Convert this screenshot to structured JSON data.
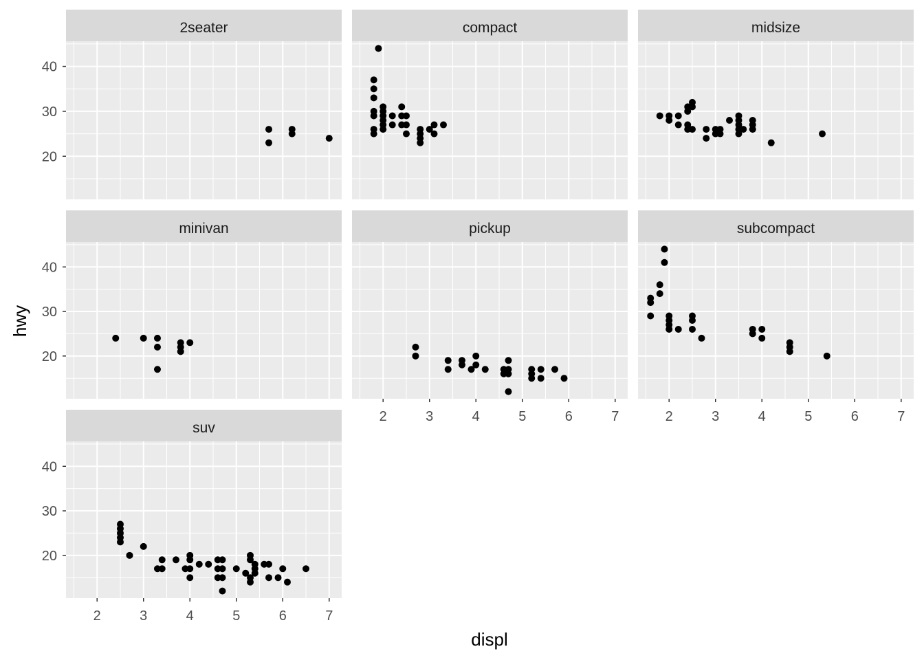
{
  "chart_data": {
    "type": "scatter",
    "xlabel": "displ",
    "ylabel": "hwy",
    "xlim": [
      1.33,
      7.27
    ],
    "ylim": [
      10.4,
      45.6
    ],
    "xticks": [
      2,
      3,
      4,
      5,
      6,
      7
    ],
    "yticks": [
      20,
      30,
      40
    ],
    "grid": true,
    "colors": {
      "panel": "#ebebeb",
      "strip": "#d9d9d9",
      "grid": "#ffffff",
      "point": "#000000",
      "tick_text": "#4d4d4d"
    },
    "facets": [
      {
        "name": "2seater",
        "points": [
          [
            5.7,
            26
          ],
          [
            5.7,
            23
          ],
          [
            6.2,
            26
          ],
          [
            6.2,
            25
          ],
          [
            7.0,
            24
          ]
        ]
      },
      {
        "name": "compact",
        "points": [
          [
            1.8,
            25
          ],
          [
            1.8,
            26
          ],
          [
            1.8,
            29
          ],
          [
            1.8,
            30
          ],
          [
            1.8,
            33
          ],
          [
            1.8,
            35
          ],
          [
            1.8,
            37
          ],
          [
            1.9,
            44
          ],
          [
            2.0,
            26
          ],
          [
            2.0,
            27
          ],
          [
            2.0,
            28
          ],
          [
            2.0,
            29
          ],
          [
            2.0,
            30
          ],
          [
            2.0,
            31
          ],
          [
            2.2,
            27
          ],
          [
            2.2,
            29
          ],
          [
            2.4,
            27
          ],
          [
            2.4,
            29
          ],
          [
            2.4,
            31
          ],
          [
            2.5,
            25
          ],
          [
            2.5,
            27
          ],
          [
            2.5,
            29
          ],
          [
            2.8,
            23
          ],
          [
            2.8,
            24
          ],
          [
            2.8,
            25
          ],
          [
            2.8,
            26
          ],
          [
            3.0,
            26
          ],
          [
            3.1,
            25
          ],
          [
            3.1,
            27
          ],
          [
            3.3,
            27
          ]
        ]
      },
      {
        "name": "midsize",
        "points": [
          [
            1.8,
            29
          ],
          [
            2.0,
            28
          ],
          [
            2.0,
            29
          ],
          [
            2.2,
            27
          ],
          [
            2.2,
            29
          ],
          [
            2.4,
            26
          ],
          [
            2.4,
            27
          ],
          [
            2.4,
            30
          ],
          [
            2.4,
            31
          ],
          [
            2.5,
            26
          ],
          [
            2.5,
            31
          ],
          [
            2.5,
            32
          ],
          [
            2.8,
            24
          ],
          [
            2.8,
            26
          ],
          [
            3.0,
            25
          ],
          [
            3.0,
            26
          ],
          [
            3.1,
            25
          ],
          [
            3.1,
            26
          ],
          [
            3.3,
            28
          ],
          [
            3.5,
            25
          ],
          [
            3.5,
            26
          ],
          [
            3.5,
            27
          ],
          [
            3.5,
            28
          ],
          [
            3.5,
            29
          ],
          [
            3.6,
            26
          ],
          [
            3.8,
            26
          ],
          [
            3.8,
            27
          ],
          [
            3.8,
            28
          ],
          [
            4.2,
            23
          ],
          [
            5.3,
            25
          ]
        ]
      },
      {
        "name": "minivan",
        "points": [
          [
            2.4,
            24
          ],
          [
            3.0,
            24
          ],
          [
            3.3,
            17
          ],
          [
            3.3,
            22
          ],
          [
            3.3,
            24
          ],
          [
            3.8,
            21
          ],
          [
            3.8,
            22
          ],
          [
            3.8,
            23
          ],
          [
            4.0,
            23
          ]
        ]
      },
      {
        "name": "pickup",
        "points": [
          [
            2.7,
            20
          ],
          [
            2.7,
            22
          ],
          [
            3.4,
            17
          ],
          [
            3.4,
            19
          ],
          [
            3.7,
            18
          ],
          [
            3.7,
            19
          ],
          [
            3.9,
            17
          ],
          [
            4.0,
            18
          ],
          [
            4.0,
            20
          ],
          [
            4.2,
            17
          ],
          [
            4.6,
            16
          ],
          [
            4.6,
            17
          ],
          [
            4.7,
            12
          ],
          [
            4.7,
            16
          ],
          [
            4.7,
            17
          ],
          [
            4.7,
            19
          ],
          [
            5.2,
            15
          ],
          [
            5.2,
            16
          ],
          [
            5.2,
            17
          ],
          [
            5.4,
            15
          ],
          [
            5.4,
            17
          ],
          [
            5.7,
            17
          ],
          [
            5.9,
            15
          ]
        ]
      },
      {
        "name": "subcompact",
        "points": [
          [
            1.6,
            29
          ],
          [
            1.6,
            32
          ],
          [
            1.6,
            33
          ],
          [
            1.8,
            34
          ],
          [
            1.8,
            36
          ],
          [
            1.9,
            41
          ],
          [
            1.9,
            44
          ],
          [
            2.0,
            26
          ],
          [
            2.0,
            27
          ],
          [
            2.0,
            28
          ],
          [
            2.0,
            29
          ],
          [
            2.2,
            26
          ],
          [
            2.5,
            26
          ],
          [
            2.5,
            28
          ],
          [
            2.5,
            29
          ],
          [
            2.7,
            24
          ],
          [
            3.8,
            25
          ],
          [
            3.8,
            26
          ],
          [
            4.0,
            24
          ],
          [
            4.0,
            26
          ],
          [
            4.6,
            21
          ],
          [
            4.6,
            22
          ],
          [
            4.6,
            23
          ],
          [
            5.4,
            20
          ]
        ]
      },
      {
        "name": "suv",
        "points": [
          [
            2.5,
            23
          ],
          [
            2.5,
            24
          ],
          [
            2.5,
            25
          ],
          [
            2.5,
            26
          ],
          [
            2.5,
            27
          ],
          [
            2.7,
            20
          ],
          [
            3.0,
            22
          ],
          [
            3.3,
            17
          ],
          [
            3.4,
            17
          ],
          [
            3.4,
            19
          ],
          [
            3.7,
            19
          ],
          [
            3.9,
            17
          ],
          [
            4.0,
            15
          ],
          [
            4.0,
            17
          ],
          [
            4.0,
            19
          ],
          [
            4.0,
            20
          ],
          [
            4.2,
            18
          ],
          [
            4.4,
            18
          ],
          [
            4.6,
            15
          ],
          [
            4.6,
            17
          ],
          [
            4.6,
            19
          ],
          [
            4.7,
            12
          ],
          [
            4.7,
            15
          ],
          [
            4.7,
            17
          ],
          [
            4.7,
            19
          ],
          [
            5.0,
            17
          ],
          [
            5.2,
            16
          ],
          [
            5.3,
            14
          ],
          [
            5.3,
            15
          ],
          [
            5.3,
            19
          ],
          [
            5.3,
            20
          ],
          [
            5.4,
            16
          ],
          [
            5.4,
            17
          ],
          [
            5.4,
            18
          ],
          [
            5.6,
            18
          ],
          [
            5.7,
            15
          ],
          [
            5.7,
            18
          ],
          [
            5.9,
            15
          ],
          [
            6.0,
            17
          ],
          [
            6.1,
            14
          ],
          [
            6.5,
            17
          ]
        ]
      }
    ]
  }
}
